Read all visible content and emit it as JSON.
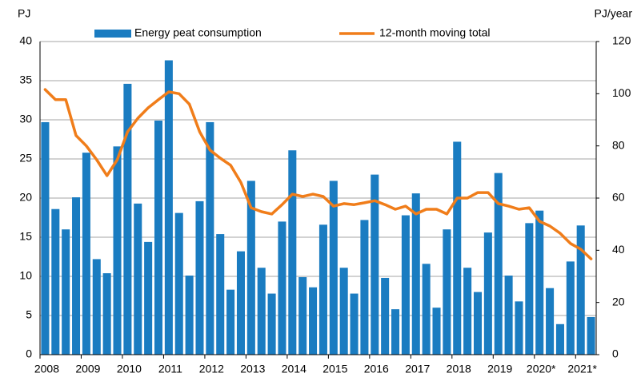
{
  "chart_data": {
    "type": "bar",
    "y_label": "PJ",
    "y2_label": "PJ/year",
    "categories": [
      "2008",
      null,
      null,
      null,
      "2009",
      null,
      null,
      null,
      "2010",
      null,
      null,
      null,
      "2011",
      null,
      null,
      null,
      "2012",
      null,
      null,
      null,
      "2013",
      null,
      null,
      null,
      "2014",
      null,
      null,
      null,
      "2015",
      null,
      null,
      null,
      "2016",
      null,
      null,
      null,
      "2017",
      null,
      null,
      null,
      "2018",
      null,
      null,
      null,
      "2019",
      null,
      null,
      null,
      "2020*",
      null,
      null,
      null,
      "2021*",
      null
    ],
    "series": [
      {
        "name": "Energy peat consumption",
        "type": "bar",
        "color": "#1a7cc1",
        "values": [
          29.7,
          18.6,
          16.0,
          20.1,
          25.8,
          12.2,
          10.4,
          26.6,
          34.6,
          19.3,
          14.4,
          29.9,
          37.6,
          18.1,
          10.1,
          19.6,
          29.7,
          15.4,
          8.3,
          13.2,
          22.2,
          11.1,
          7.8,
          17.0,
          26.1,
          9.9,
          8.6,
          16.6,
          22.2,
          11.1,
          7.8,
          17.2,
          23.0,
          9.8,
          5.8,
          17.8,
          20.6,
          11.6,
          6.0,
          16.0,
          27.2,
          11.1,
          8.0,
          15.6,
          23.2,
          10.1,
          6.8,
          16.8,
          18.4,
          8.5,
          3.9,
          11.9,
          16.5,
          4.8
        ]
      },
      {
        "name": "12-month moving total",
        "type": "line",
        "axis": "y2",
        "color": "#f07d1a",
        "values": [
          101.6,
          97.7,
          97.7,
          84,
          80,
          74.7,
          68.6,
          74.7,
          85.4,
          90.6,
          94.6,
          97.7,
          100.7,
          100,
          96,
          85.4,
          78.4,
          75.3,
          72.6,
          66,
          56.3,
          54.8,
          53.9,
          57.5,
          61.5,
          60.6,
          61.5,
          60.6,
          56.9,
          57.9,
          57.5,
          58.2,
          59,
          57.5,
          55.7,
          56.9,
          53.9,
          55.7,
          55.7,
          53.9,
          60,
          60,
          62.1,
          62.1,
          57.9,
          56.9,
          55.7,
          56.3,
          51.1,
          49.3,
          46.5,
          42.6,
          40.4,
          36.7
        ]
      }
    ],
    "ylim": [
      0,
      40
    ],
    "yticks": [
      0,
      5,
      10,
      15,
      20,
      25,
      30,
      35,
      40
    ],
    "y2lim": [
      0,
      120
    ],
    "y2ticks": [
      0,
      20,
      40,
      60,
      80,
      100,
      120
    ],
    "grid": true
  }
}
